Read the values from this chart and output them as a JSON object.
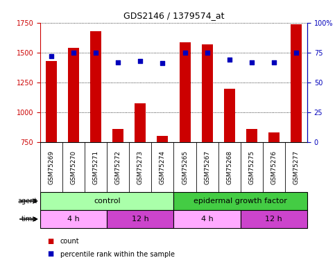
{
  "title": "GDS2146 / 1379574_at",
  "samples": [
    "GSM75269",
    "GSM75270",
    "GSM75271",
    "GSM75272",
    "GSM75273",
    "GSM75274",
    "GSM75265",
    "GSM75267",
    "GSM75268",
    "GSM75275",
    "GSM75276",
    "GSM75277"
  ],
  "counts": [
    1430,
    1540,
    1680,
    860,
    1075,
    800,
    1590,
    1570,
    1195,
    860,
    830,
    1740
  ],
  "percentiles": [
    72,
    75,
    75,
    67,
    68,
    66,
    75,
    75,
    69,
    67,
    67,
    75
  ],
  "ylim_left": [
    750,
    1750
  ],
  "ylim_right": [
    0,
    100
  ],
  "yticks_left": [
    750,
    1000,
    1250,
    1500,
    1750
  ],
  "yticks_right": [
    0,
    25,
    50,
    75,
    100
  ],
  "ytick_labels_right": [
    "0",
    "25",
    "50",
    "75",
    "100%"
  ],
  "bar_color": "#cc0000",
  "dot_color": "#0000bb",
  "bar_width": 0.5,
  "agent_labels": [
    "control",
    "epidermal growth factor"
  ],
  "agent_color_light": "#aaffaa",
  "agent_color_dark": "#44cc44",
  "time_labels": [
    "4 h",
    "12 h",
    "4 h",
    "12 h"
  ],
  "time_color_light": "#ffaaff",
  "time_color_dark": "#cc44cc",
  "grid_color": "#000000",
  "bg_color": "#ffffff",
  "sample_bg_color": "#cccccc",
  "left_axis_color": "#cc0000",
  "right_axis_color": "#0000bb",
  "n_samples": 12,
  "n_control": 6,
  "n_4h_control": 3,
  "n_12h_control": 3,
  "n_4h_egf": 3,
  "n_12h_egf": 3
}
